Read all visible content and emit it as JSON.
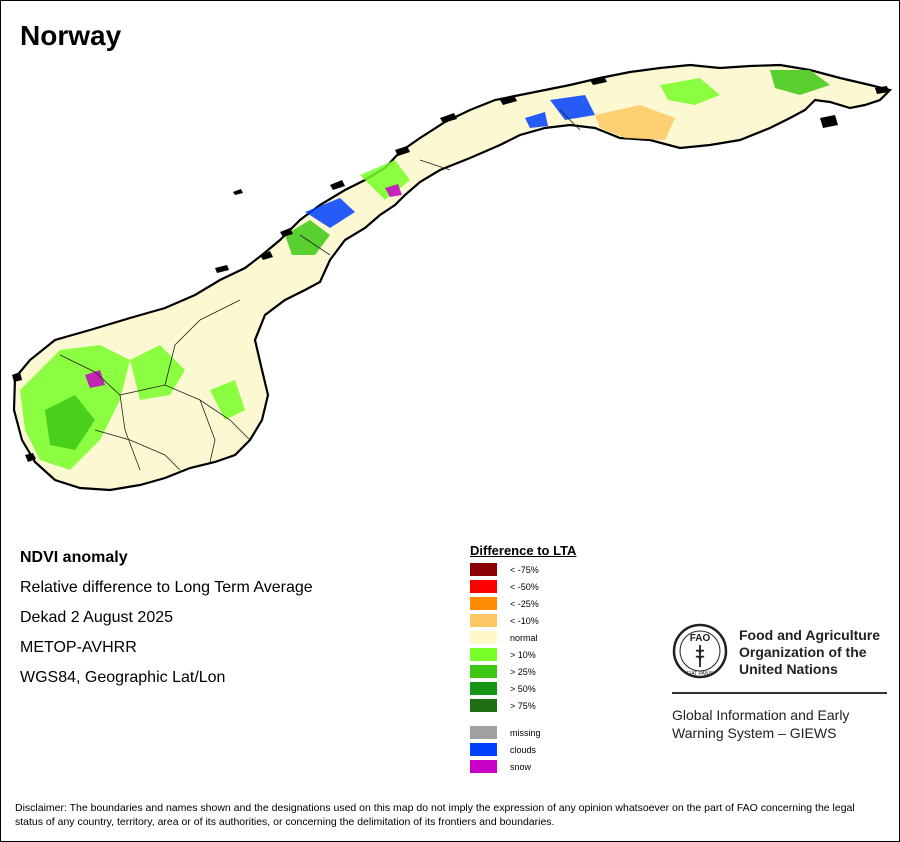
{
  "map": {
    "title": "Norway",
    "country": "Norway",
    "land_color": "#fcf8d2",
    "border_color": "#000000"
  },
  "info": {
    "title": "NDVI anomaly",
    "line1": "Relative difference to Long Term Average",
    "line2": "Dekad 2 August 2025",
    "line3": "METOP-AVHRR",
    "line4": "WGS84, Geographic Lat/Lon"
  },
  "legend": {
    "title": "Difference to LTA",
    "items": [
      {
        "label": "< -75%",
        "color": "#8b0000"
      },
      {
        "label": "< -50%",
        "color": "#ff0000"
      },
      {
        "label": "< -25%",
        "color": "#ff8c00"
      },
      {
        "label": "< -10%",
        "color": "#ffc864"
      },
      {
        "label": "normal",
        "color": "#fff8c8"
      },
      {
        "label": "> 10%",
        "color": "#78ff28"
      },
      {
        "label": "> 25%",
        "color": "#3cc814"
      },
      {
        "label": "> 50%",
        "color": "#149614"
      },
      {
        "label": "> 75%",
        "color": "#1e6e14"
      },
      {
        "label": "missing",
        "color": "#a0a0a0"
      },
      {
        "label": "clouds",
        "color": "#0040ff"
      },
      {
        "label": "snow",
        "color": "#c800c8"
      }
    ]
  },
  "fao": {
    "logo_text": "FAO",
    "logo_motto": "FIAT PANIS",
    "name_line1": "Food and Agriculture",
    "name_line2": "Organization of the",
    "name_line3": "United Nations",
    "giews_line1": "Global Information and Early",
    "giews_line2": "Warning System – GIEWS"
  },
  "disclaimer": "Disclaimer: The boundaries and names shown and the designations used on this map do not imply the expression of any opinion whatsoever on the part of FAO concerning the legal status of any country, territory, area or of its authorities, or concerning the delimitation of its frontiers and boundaries."
}
